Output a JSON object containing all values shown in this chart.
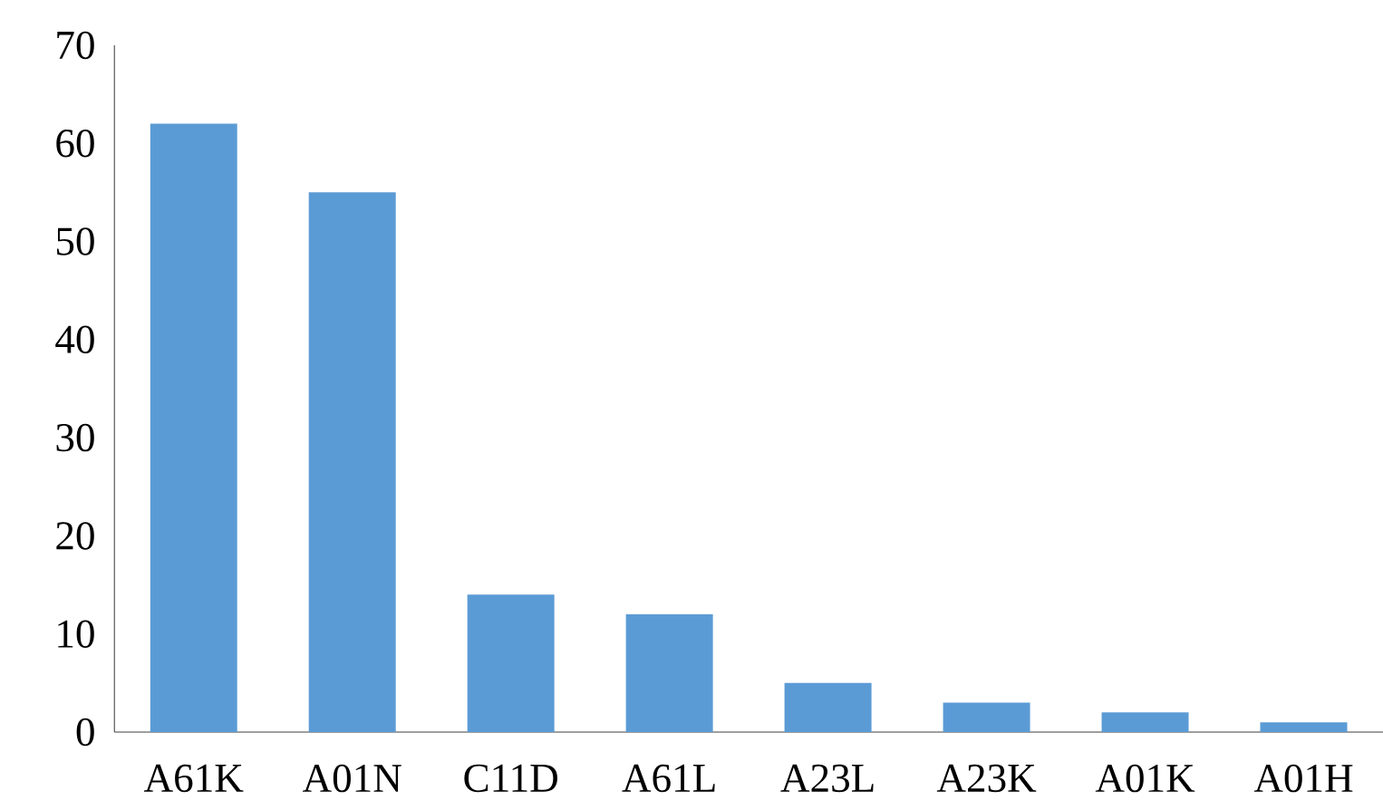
{
  "chart_data": {
    "type": "bar",
    "categories": [
      "A61K",
      "A01N",
      "C11D",
      "A61L",
      "A23L",
      "A23K",
      "A01K",
      "A01H"
    ],
    "values": [
      62,
      55,
      14,
      12,
      5,
      3,
      2,
      1
    ],
    "color": "#5b9bd5",
    "ylim": [
      0,
      70
    ],
    "yticks": [
      0,
      10,
      20,
      30,
      40,
      50,
      60,
      70
    ],
    "grid": false
  }
}
